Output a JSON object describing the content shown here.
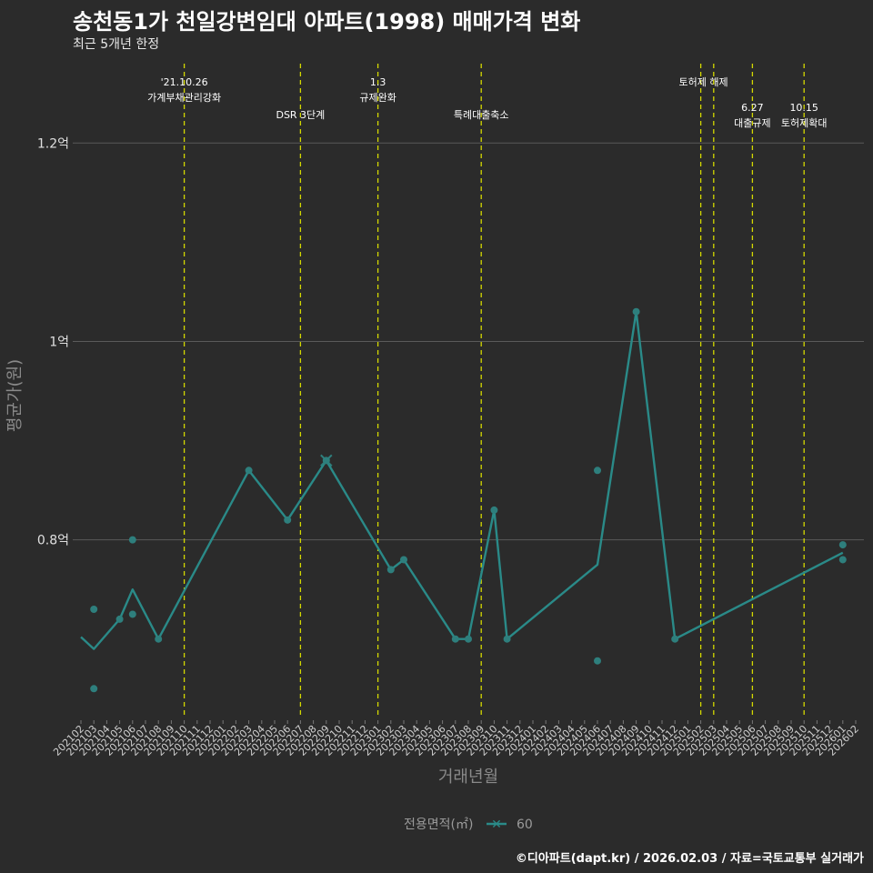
{
  "chart_data": {
    "type": "line",
    "title": "송천동1가 천일강변임대 아파트(1998) 매매가격 변화",
    "subtitle": "최근 5개년 한정",
    "xlabel": "거래년월",
    "ylabel": "평균가(원)",
    "caption": "©디아파트(dapt.kr) / 2026.02.03 / 자료=국토교통부 실거래가",
    "legend": {
      "title": "전용면적(㎡)",
      "entries": [
        "60"
      ],
      "position": "bottom"
    },
    "ylim": [
      0.62,
      1.28
    ],
    "y_ticks": [
      {
        "value": 0.8,
        "label": "0.8억"
      },
      {
        "value": 1.0,
        "label": "1억"
      },
      {
        "value": 1.2,
        "label": "1.2억"
      }
    ],
    "categories": [
      "202102",
      "202103",
      "202104",
      "202105",
      "202106",
      "202107",
      "202108",
      "202109",
      "202110",
      "202111",
      "202112",
      "202201",
      "202202",
      "202203",
      "202204",
      "202205",
      "202206",
      "202207",
      "202208",
      "202209",
      "202210",
      "202211",
      "202212",
      "202301",
      "202302",
      "202303",
      "202304",
      "202305",
      "202306",
      "202307",
      "202308",
      "202309",
      "202310",
      "202311",
      "202312",
      "202401",
      "202402",
      "202403",
      "202404",
      "202405",
      "202406",
      "202407",
      "202408",
      "202409",
      "202410",
      "202411",
      "202412",
      "202501",
      "202502",
      "202503",
      "202504",
      "202505",
      "202506",
      "202507",
      "202508",
      "202509",
      "202510",
      "202511",
      "202512",
      "202601",
      "202602"
    ],
    "series": [
      {
        "name": "60",
        "color": "#2a8a88",
        "line": [
          {
            "x": "202102",
            "y": 0.702
          },
          {
            "x": "202103",
            "y": 0.69
          },
          {
            "x": "202105",
            "y": 0.72
          },
          {
            "x": "202106",
            "y": 0.75
          },
          {
            "x": "202108",
            "y": 0.7
          },
          {
            "x": "202203",
            "y": 0.87
          },
          {
            "x": "202206",
            "y": 0.82
          },
          {
            "x": "202209",
            "y": 0.88
          },
          {
            "x": "202302",
            "y": 0.77
          },
          {
            "x": "202303",
            "y": 0.78
          },
          {
            "x": "202307",
            "y": 0.7
          },
          {
            "x": "202308",
            "y": 0.7
          },
          {
            "x": "202310",
            "y": 0.83
          },
          {
            "x": "202311",
            "y": 0.7
          },
          {
            "x": "202406",
            "y": 0.775
          },
          {
            "x": "202409",
            "y": 1.03
          },
          {
            "x": "202412",
            "y": 0.7
          },
          {
            "x": "202601",
            "y": 0.787
          }
        ],
        "points": [
          {
            "x": "202103",
            "y": 0.73
          },
          {
            "x": "202103",
            "y": 0.65
          },
          {
            "x": "202105",
            "y": 0.72
          },
          {
            "x": "202106",
            "y": 0.8
          },
          {
            "x": "202106",
            "y": 0.725
          },
          {
            "x": "202108",
            "y": 0.7
          },
          {
            "x": "202203",
            "y": 0.87
          },
          {
            "x": "202206",
            "y": 0.82
          },
          {
            "x": "202209",
            "y": 0.88
          },
          {
            "x": "202302",
            "y": 0.77
          },
          {
            "x": "202303",
            "y": 0.78
          },
          {
            "x": "202307",
            "y": 0.7
          },
          {
            "x": "202308",
            "y": 0.7
          },
          {
            "x": "202310",
            "y": 0.83
          },
          {
            "x": "202311",
            "y": 0.7
          },
          {
            "x": "202406",
            "y": 0.87
          },
          {
            "x": "202406",
            "y": 0.678
          },
          {
            "x": "202409",
            "y": 1.03
          },
          {
            "x": "202412",
            "y": 0.7
          },
          {
            "x": "202601",
            "y": 0.795
          },
          {
            "x": "202601",
            "y": 0.78
          }
        ]
      }
    ],
    "events": [
      {
        "x": "202110",
        "lines": [
          "'21.10.26",
          "가계부채관리강화"
        ],
        "row": 1
      },
      {
        "x": "202207",
        "lines": [
          "DSR 3단계"
        ],
        "row": 2
      },
      {
        "x": "202301",
        "lines": [
          "1.3",
          "규제완화"
        ],
        "row": 1
      },
      {
        "x": "202309",
        "lines": [
          "특례대출축소"
        ],
        "row": 2
      },
      {
        "x": "202502",
        "lines": [
          "토허제 해제"
        ],
        "row": 1,
        "anchor": "end"
      },
      {
        "x": "202503",
        "lines": [],
        "row": 1
      },
      {
        "x": "202506",
        "lines": [
          "6.27",
          "대출규제"
        ],
        "row": 2
      },
      {
        "x": "202510",
        "lines": [
          "10.15",
          "토허제확대"
        ],
        "row": 2
      }
    ]
  }
}
